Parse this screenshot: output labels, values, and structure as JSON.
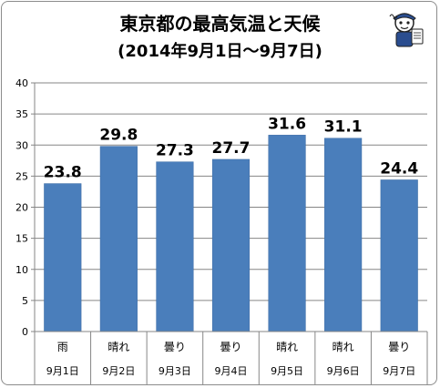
{
  "chart_data": {
    "type": "bar",
    "title": "東京都の最高気温と天候",
    "subtitle": "(2014年9月1日～9月7日)",
    "categories": [
      "雨",
      "晴れ",
      "曇り",
      "曇り",
      "晴れ",
      "晴れ",
      "曇り"
    ],
    "dates": [
      "9月1日",
      "9月2日",
      "9月3日",
      "9月4日",
      "9月5日",
      "9月6日",
      "9月7日"
    ],
    "values": [
      23.8,
      29.8,
      27.3,
      27.7,
      31.6,
      31.1,
      24.4
    ],
    "value_labels": [
      "23.8",
      "29.8",
      "27.3",
      "27.7",
      "31.6",
      "31.1",
      "24.4"
    ],
    "ylim": [
      0,
      40
    ],
    "yticks": [
      0,
      5,
      10,
      15,
      20,
      25,
      30,
      35,
      40
    ],
    "grid": true,
    "legend": "none",
    "colors": {
      "bar": "#4a7ebb",
      "bar_edge": "#3a6aa4",
      "grid": "#868686",
      "axis": "#868686"
    }
  },
  "mascot_icon": "cartoon-mascot-icon"
}
